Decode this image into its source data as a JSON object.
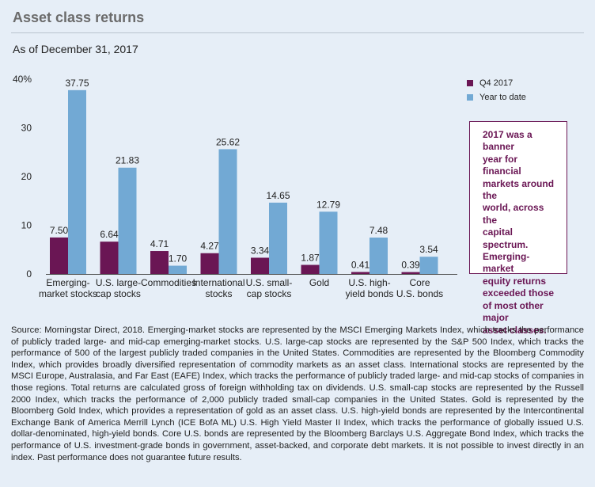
{
  "title": "Asset class returns",
  "subtitle": "As of December 31, 2017",
  "legend": {
    "items": [
      {
        "label": "Q4 2017",
        "color": "#6a1654"
      },
      {
        "label": "Year to date",
        "color": "#72a9d4"
      }
    ]
  },
  "callout": "2017 was a banner\nyear for financial\nmarkets around the\nworld, across the\ncapital spectrum.\nEmerging-market\nequity returns\nexceeded those\nof most other major\nasset classes.",
  "source": "Source: Morningstar Direct, 2018. Emerging-market stocks are represented by the MSCI Emerging Markets Index, which tracks the performance of publicly traded large- and mid-cap emerging-market stocks. U.S. large-cap stocks are represented by the S&P 500 Index, which tracks the performance of 500 of the largest publicly traded companies in the United States. Commodities are represented by the Bloomberg Commodity Index, which provides broadly diversified representation of commodity markets as an asset class. International stocks are represented by the MSCI Europe, Australasia, and Far East (EAFE) Index, which tracks the performance of publicly traded large- and mid-cap stocks of companies in those regions. Total returns are calculated gross of foreign withholding tax on dividends. U.S. small-cap stocks are represented by the Russell 2000 Index, which tracks the performance of 2,000 publicly traded small-cap companies in the United States. Gold is represented by the Bloomberg Gold Index, which provides a representation of gold as an asset class. U.S. high-yield bonds are represented by the Intercontinental Exchange Bank of America Merrill Lynch (ICE BofA ML) U.S. High Yield Master II Index, which tracks the performance of globally issued U.S. dollar-denominated, high-yield bonds. Core U.S. bonds are represented by the Bloomberg Barclays U.S. Aggregate Bond Index, which tracks the performance of U.S. investment-grade bonds in government, asset-backed, and corporate debt markets. It is not possible to invest directly in an index. Past performance does not guarantee future results.",
  "chart_data": {
    "type": "bar",
    "title": "Asset class returns",
    "subtitle": "As of December 31, 2017",
    "xlabel": "",
    "ylabel": "",
    "ylim": [
      0,
      40
    ],
    "yticks": [
      "0",
      "10",
      "20",
      "30",
      "40%"
    ],
    "yticks_values": [
      0,
      10,
      20,
      30,
      40
    ],
    "grid": false,
    "legend_position": "top-right",
    "categories": [
      [
        "Emerging-",
        "market stocks"
      ],
      [
        "U.S. large-",
        "cap stocks"
      ],
      [
        "Commodities"
      ],
      [
        "International",
        "stocks"
      ],
      [
        "U.S. small-",
        "cap stocks"
      ],
      [
        "Gold"
      ],
      [
        "U.S. high-",
        "yield bonds"
      ],
      [
        "Core",
        "U.S. bonds"
      ]
    ],
    "series": [
      {
        "name": "Q4 2017",
        "color": "#6a1654",
        "values": [
          7.5,
          6.64,
          4.71,
          4.27,
          3.34,
          1.87,
          0.41,
          0.39
        ],
        "labels": [
          "7.50",
          "6.64",
          "4.71",
          "4.27",
          "3.34",
          "1.87",
          "0.41",
          "0.39"
        ]
      },
      {
        "name": "Year to date",
        "color": "#72a9d4",
        "values": [
          37.75,
          21.83,
          1.7,
          25.62,
          14.65,
          12.79,
          7.48,
          3.54
        ],
        "labels": [
          "37.75",
          "21.83",
          "1.70",
          "25.62",
          "14.65",
          "12.79",
          "7.48",
          "3.54"
        ]
      }
    ]
  }
}
